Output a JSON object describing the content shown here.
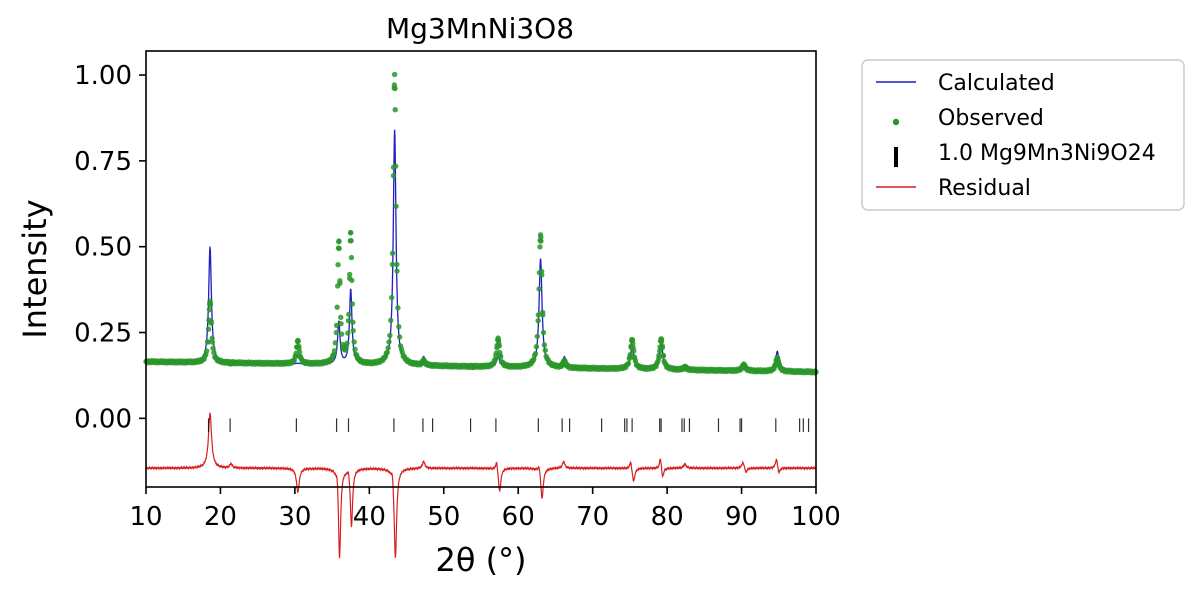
{
  "chart_data": {
    "type": "line",
    "title": "Mg3MnNi3O8",
    "xlabel": "2θ (°)",
    "ylabel": "Intensity",
    "xlim": [
      10,
      100
    ],
    "ylim": [
      -0.2,
      1.07
    ],
    "xticks": [
      10,
      20,
      30,
      40,
      50,
      60,
      70,
      80,
      90,
      100
    ],
    "yticks": [
      0.0,
      0.25,
      0.5,
      0.75,
      1.0
    ],
    "ytick_labels": [
      "0.00",
      "0.25",
      "0.50",
      "0.75",
      "1.00"
    ],
    "grid": false,
    "legend_position": "outside-right-top",
    "colors": {
      "calculated": "#1f1fbf",
      "observed": "#2a962a",
      "reflections": "#000000",
      "residual": "#d62020"
    },
    "legend": [
      {
        "label": "Calculated",
        "marker": "line",
        "color": "#1f1fbf"
      },
      {
        "label": "Observed",
        "marker": "dot",
        "color": "#2a962a"
      },
      {
        "label": "1.0 Mg9Mn3Ni9O24",
        "marker": "bar",
        "color": "#000000"
      },
      {
        "label": "Residual",
        "marker": "line",
        "color": "#d62020"
      }
    ],
    "background": {
      "start": 0.165,
      "end": 0.135
    },
    "peaks": [
      {
        "x": 18.6,
        "calc": 0.5,
        "obs": 0.34,
        "w": 0.22
      },
      {
        "x": 21.4,
        "calc": 0.165,
        "obs": 0.16,
        "w": 0.2
      },
      {
        "x": 30.4,
        "calc": 0.16,
        "obs": 0.225,
        "w": 0.22
      },
      {
        "x": 35.9,
        "calc": 0.28,
        "obs": 0.51,
        "w": 0.2
      },
      {
        "x": 37.5,
        "calc": 0.375,
        "obs": 0.535,
        "w": 0.2
      },
      {
        "x": 43.4,
        "calc": 0.84,
        "obs": 1.0,
        "w": 0.22
      },
      {
        "x": 47.3,
        "calc": 0.178,
        "obs": 0.165,
        "w": 0.22
      },
      {
        "x": 53.8,
        "calc": 0.148,
        "obs": 0.15,
        "w": 0.22
      },
      {
        "x": 57.3,
        "calc": 0.18,
        "obs": 0.23,
        "w": 0.24
      },
      {
        "x": 63.0,
        "calc": 0.465,
        "obs": 0.535,
        "w": 0.24
      },
      {
        "x": 66.2,
        "calc": 0.178,
        "obs": 0.165,
        "w": 0.22
      },
      {
        "x": 75.3,
        "calc": 0.21,
        "obs": 0.228,
        "w": 0.26
      },
      {
        "x": 79.2,
        "calc": 0.22,
        "obs": 0.23,
        "w": 0.26
      },
      {
        "x": 82.4,
        "calc": 0.152,
        "obs": 0.148,
        "w": 0.26
      },
      {
        "x": 90.3,
        "calc": 0.16,
        "obs": 0.155,
        "w": 0.28
      },
      {
        "x": 94.8,
        "calc": 0.195,
        "obs": 0.175,
        "w": 0.26
      }
    ],
    "reflections_y": [
      -0.04,
      -0.0
    ],
    "reflections_x": [
      18.4,
      21.3,
      30.2,
      35.6,
      37.2,
      43.3,
      47.2,
      48.5,
      53.6,
      57.0,
      62.7,
      65.9,
      66.9,
      71.2,
      74.3,
      74.6,
      75.3,
      79.0,
      79.2,
      82.0,
      82.3,
      83.0,
      86.9,
      89.8,
      90.0,
      94.6,
      97.8,
      98.3,
      99.0
    ],
    "residual_offset": -0.145,
    "residual_dips": [
      {
        "x": 18.6,
        "amp": 0.16,
        "w": 0.25
      },
      {
        "x": 21.4,
        "amp": 0.012,
        "w": 0.2
      },
      {
        "x": 30.4,
        "amp": -0.07,
        "w": 0.22
      },
      {
        "x": 35.7,
        "amp": 0.03,
        "w": 0.15
      },
      {
        "x": 36.0,
        "amp": -0.265,
        "w": 0.18
      },
      {
        "x": 37.2,
        "amp": 0.02,
        "w": 0.15
      },
      {
        "x": 37.6,
        "amp": -0.17,
        "w": 0.18
      },
      {
        "x": 43.1,
        "amp": 0.03,
        "w": 0.15
      },
      {
        "x": 43.5,
        "amp": -0.265,
        "w": 0.2
      },
      {
        "x": 47.3,
        "amp": 0.02,
        "w": 0.2
      },
      {
        "x": 57.1,
        "amp": 0.03,
        "w": 0.15
      },
      {
        "x": 57.5,
        "amp": -0.07,
        "w": 0.2
      },
      {
        "x": 62.8,
        "amp": 0.02,
        "w": 0.15
      },
      {
        "x": 63.2,
        "amp": -0.09,
        "w": 0.2
      },
      {
        "x": 66.1,
        "amp": 0.02,
        "w": 0.2
      },
      {
        "x": 75.1,
        "amp": 0.025,
        "w": 0.15
      },
      {
        "x": 75.5,
        "amp": -0.04,
        "w": 0.2
      },
      {
        "x": 79.1,
        "amp": 0.035,
        "w": 0.15
      },
      {
        "x": 79.4,
        "amp": -0.03,
        "w": 0.18
      },
      {
        "x": 82.4,
        "amp": 0.012,
        "w": 0.2
      },
      {
        "x": 90.2,
        "amp": 0.018,
        "w": 0.22
      },
      {
        "x": 90.6,
        "amp": -0.015,
        "w": 0.2
      },
      {
        "x": 94.7,
        "amp": 0.03,
        "w": 0.18
      },
      {
        "x": 95.0,
        "amp": -0.02,
        "w": 0.18
      }
    ]
  }
}
